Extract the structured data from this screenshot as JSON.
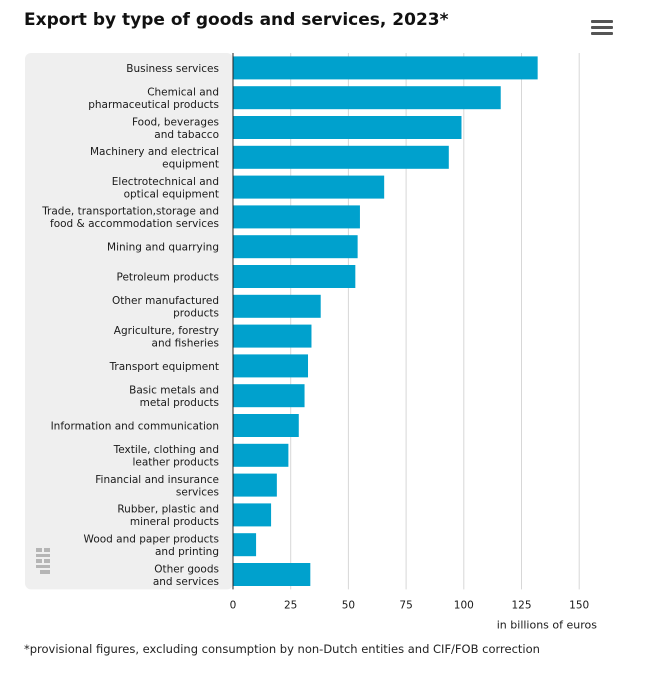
{
  "title": "Export by type of goods and services, 2023*",
  "footnote": "*provisional figures, excluding consumption by non-Dutch entities and CIF/FOB correction",
  "menu_icon": "hamburger-menu-icon",
  "logo_icon": "cbs-logo-icon",
  "colors": {
    "bar": "#00a1cd",
    "plot_bg": "#efefef",
    "grid": "#d7d7d7",
    "axis": "#222222"
  },
  "chart_data": {
    "type": "bar",
    "orientation": "horizontal",
    "title": "Export by type of goods and services, 2023*",
    "xlabel": "in billions of euros",
    "ylabel": "",
    "xlim": [
      0,
      150
    ],
    "xticks": [
      0,
      25,
      50,
      75,
      100,
      125,
      150
    ],
    "grid": true,
    "categories": [
      "Business services",
      "Chemical and pharmaceutical products",
      "Food, beverages and tabacco",
      "Machinery and electrical equipment",
      "Electrotechnical and optical equipment",
      "Trade, transportation,storage and food & accommodation services",
      "Mining and quarrying",
      "Petroleum products",
      "Other manufactured products",
      "Agriculture, forestry and fisheries",
      "Transport equipment",
      "Basic metals and metal products",
      "Information and communication",
      "Textile, clothing and leather products",
      "Financial and insurance services",
      "Rubber, plastic and mineral products",
      "Wood and paper products and printing",
      "Other goods and services"
    ],
    "label_lines": [
      [
        "Business services"
      ],
      [
        "Chemical and",
        "pharmaceutical products"
      ],
      [
        "Food, beverages",
        "and tabacco"
      ],
      [
        "Machinery and electrical",
        "equipment"
      ],
      [
        "Electrotechnical and",
        "optical equipment"
      ],
      [
        "Trade, transportation,storage and",
        "food & accommodation services"
      ],
      [
        "Mining and quarrying"
      ],
      [
        "Petroleum products"
      ],
      [
        "Other manufactured",
        "products"
      ],
      [
        "Agriculture, forestry",
        "and fisheries"
      ],
      [
        "Transport equipment"
      ],
      [
        "Basic metals and",
        "metal products"
      ],
      [
        "Information and communication"
      ],
      [
        "Textile, clothing and",
        "leather products"
      ],
      [
        "Financial and insurance",
        "services"
      ],
      [
        "Rubber, plastic and",
        "mineral products"
      ],
      [
        "Wood and paper products",
        "and printing"
      ],
      [
        "Other goods",
        "and services"
      ]
    ],
    "values": [
      132,
      116,
      99,
      93.5,
      65.5,
      55,
      54,
      53,
      38,
      34,
      32.5,
      31,
      28.5,
      24,
      19,
      16.5,
      10,
      33.5
    ]
  }
}
